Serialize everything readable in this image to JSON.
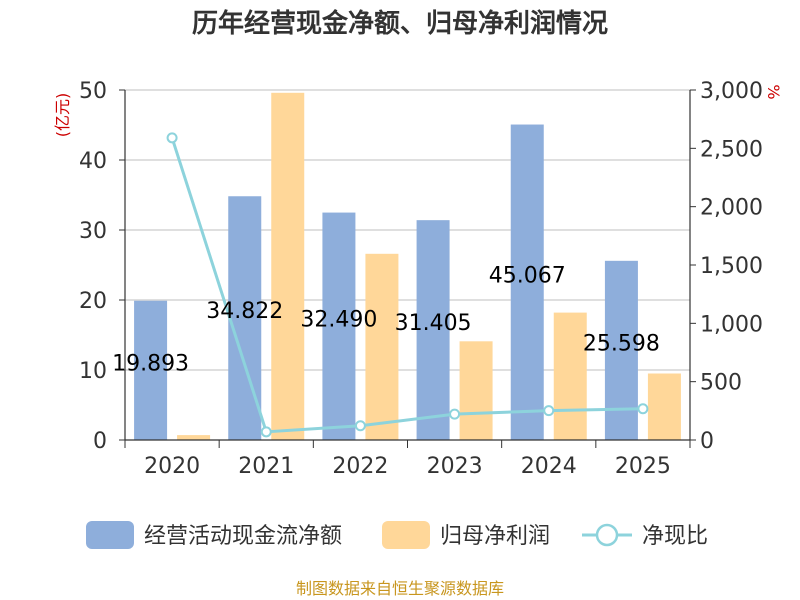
{
  "chart_data": {
    "type": "bar",
    "title": "历年经营现金净额、归母净利润情况",
    "categories": [
      "2020",
      "2021",
      "2022",
      "2023",
      "2024",
      "2025"
    ],
    "series": [
      {
        "name": "经营活动现金流净额",
        "type": "bar",
        "axis": "left",
        "color": "#8eaedb",
        "values": [
          19.893,
          34.822,
          32.49,
          31.405,
          45.067,
          25.598
        ]
      },
      {
        "name": "归母净利润",
        "type": "bar",
        "axis": "left",
        "color": "#ffd799",
        "values": [
          0.7,
          49.6,
          26.6,
          14.1,
          18.2,
          9.5
        ]
      },
      {
        "name": "净现比",
        "type": "line",
        "axis": "right",
        "color": "#8dd3dc",
        "values": [
          2590,
          70,
          122,
          222,
          252,
          268
        ]
      }
    ],
    "data_labels": [
      "19.893",
      "34.822",
      "32.490",
      "31.405",
      "45.067",
      "25.598"
    ],
    "y_left": {
      "label": "(亿元)",
      "ylim": [
        0,
        50
      ],
      "ticks": [
        0,
        10,
        20,
        30,
        40,
        50
      ],
      "tick_labels": [
        "0",
        "10",
        "20",
        "30",
        "40",
        "50"
      ]
    },
    "y_right": {
      "label": "%",
      "ylim": [
        0,
        3000
      ],
      "ticks": [
        0,
        500,
        1000,
        1500,
        2000,
        2500,
        3000
      ],
      "tick_labels": [
        "0",
        "500",
        "1,000",
        "1,500",
        "2,000",
        "2,500",
        "3,000"
      ]
    },
    "legend_position": "bottom",
    "source": "制图数据来自恒生聚源数据库"
  }
}
